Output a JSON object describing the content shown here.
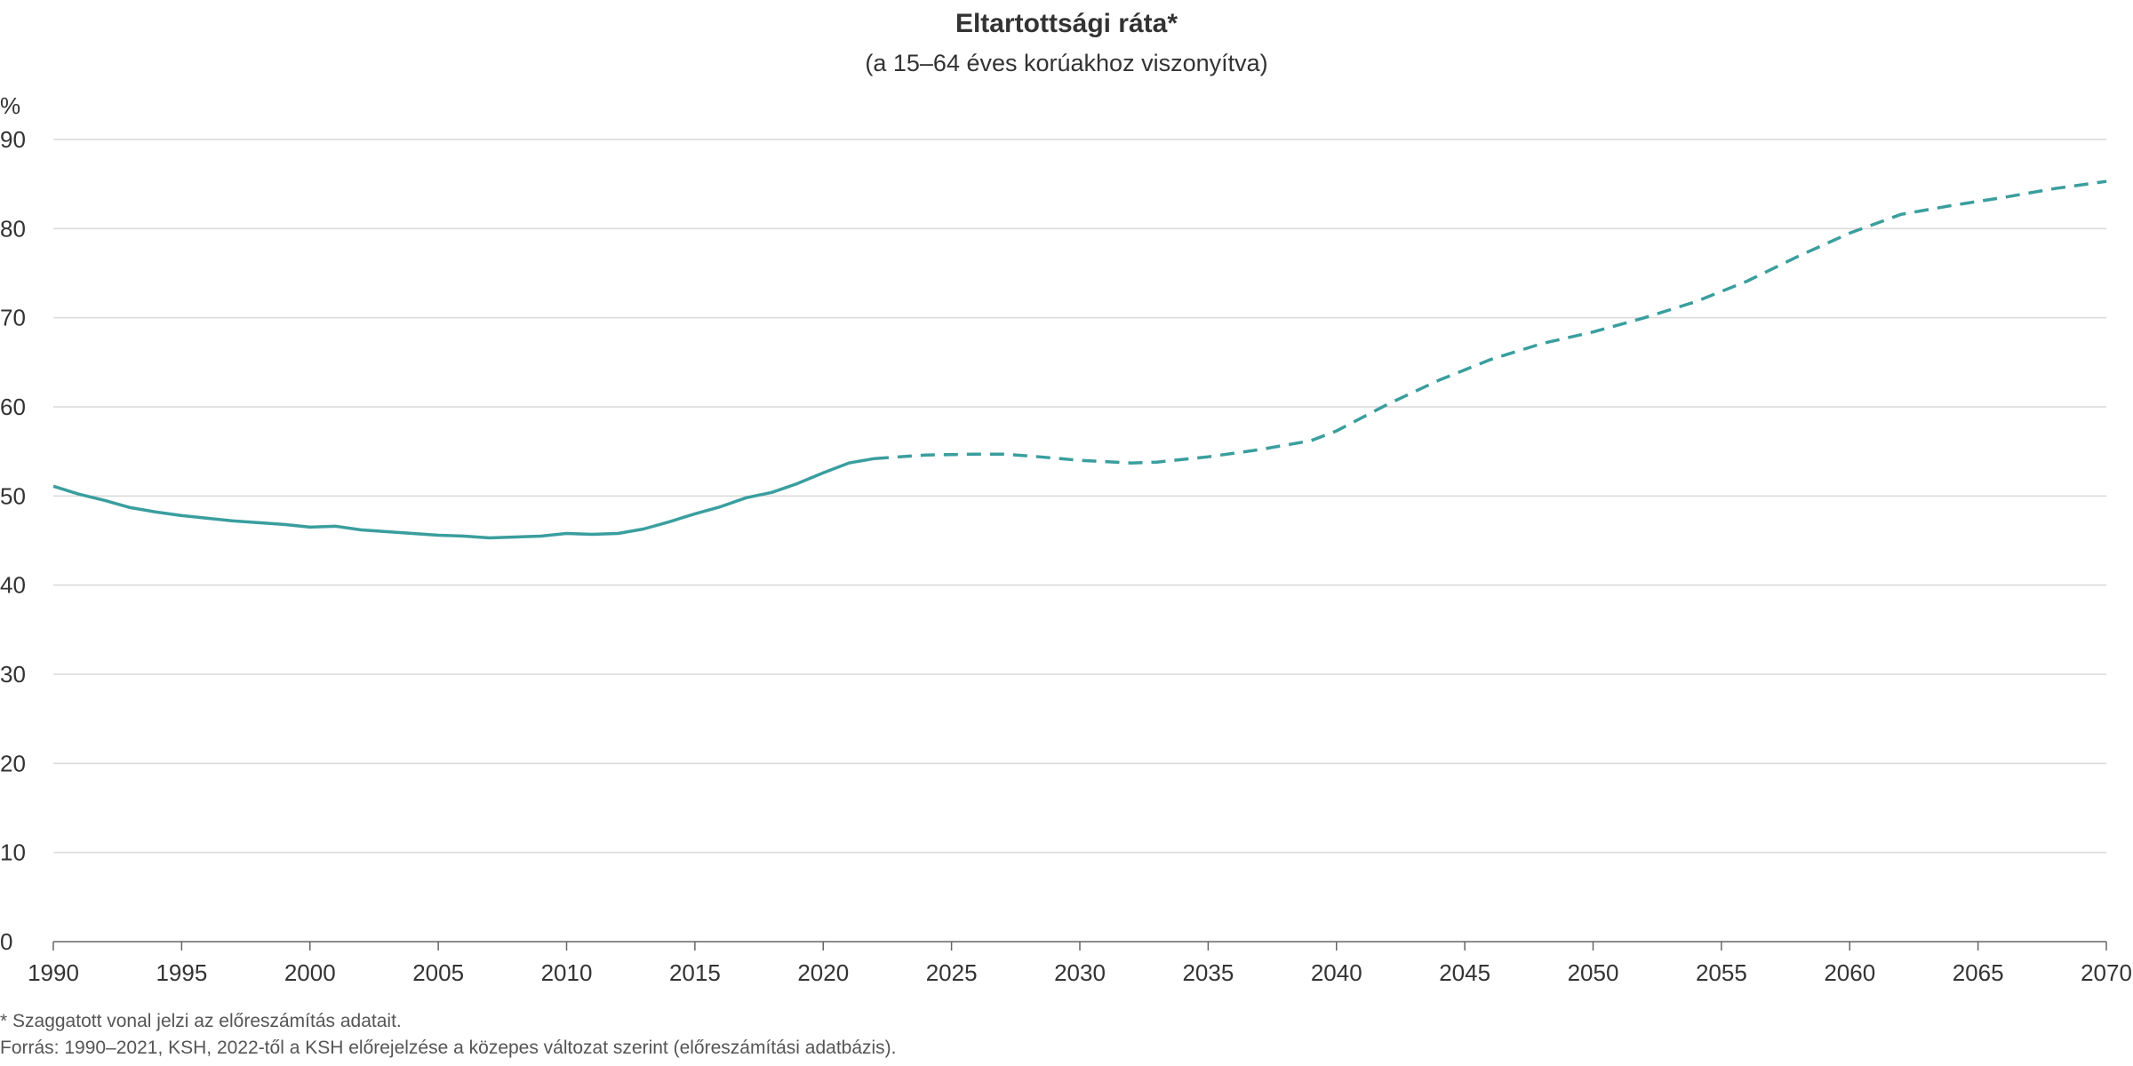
{
  "chart_data": {
    "type": "line",
    "title": "Eltartottsági ráta*",
    "subtitle": "(a 15–64 éves korúakhoz viszonyítva)",
    "ylabel": "%",
    "xlabel": "",
    "xlim": [
      1990,
      2070
    ],
    "ylim": [
      0,
      90
    ],
    "x_ticks": [
      1990,
      1995,
      2000,
      2005,
      2010,
      2015,
      2020,
      2025,
      2030,
      2035,
      2040,
      2045,
      2050,
      2055,
      2060,
      2065,
      2070
    ],
    "y_ticks": [
      0,
      10,
      20,
      30,
      40,
      50,
      60,
      70,
      80,
      90
    ],
    "grid": "horizontal",
    "color": "#3a9e9e",
    "series": [
      {
        "style": "solid",
        "x": [
          1990,
          1991,
          1992,
          1993,
          1994,
          1995,
          1996,
          1997,
          1998,
          1999,
          2000,
          2001,
          2002,
          2003,
          2004,
          2005,
          2006,
          2007,
          2008,
          2009,
          2010,
          2011,
          2012,
          2013,
          2014,
          2015,
          2016,
          2017,
          2018,
          2019,
          2020,
          2021,
          2022
        ],
        "values": [
          51.1,
          50.2,
          49.5,
          48.7,
          48.2,
          47.8,
          47.5,
          47.2,
          47.0,
          46.8,
          46.5,
          46.6,
          46.2,
          46.0,
          45.8,
          45.6,
          45.5,
          45.3,
          45.4,
          45.5,
          45.8,
          45.7,
          45.8,
          46.3,
          47.1,
          48.0,
          48.8,
          49.8,
          50.4,
          51.4,
          52.6,
          53.7,
          54.2
        ]
      },
      {
        "style": "dashed",
        "x": [
          2022,
          2024,
          2026,
          2027,
          2028,
          2030,
          2032,
          2033,
          2035,
          2037,
          2039,
          2040,
          2042,
          2044,
          2046,
          2048,
          2050,
          2052,
          2054,
          2056,
          2058,
          2060,
          2062,
          2064,
          2066,
          2068,
          2070
        ],
        "values": [
          54.2,
          54.6,
          54.7,
          54.7,
          54.5,
          54.0,
          53.7,
          53.8,
          54.4,
          55.2,
          56.2,
          57.3,
          60.3,
          63.0,
          65.3,
          67.1,
          68.4,
          70.0,
          71.8,
          74.1,
          76.9,
          79.5,
          81.6,
          82.6,
          83.5,
          84.5,
          85.3
        ]
      }
    ]
  },
  "notes": {
    "footnote": "* Szaggatott vonal jelzi az előreszámítás adatait.",
    "source": "Forrás: 1990–2021, KSH, 2022-től a KSH előrejelzése a közepes változat szerint (előreszámítási adatbázis)."
  }
}
